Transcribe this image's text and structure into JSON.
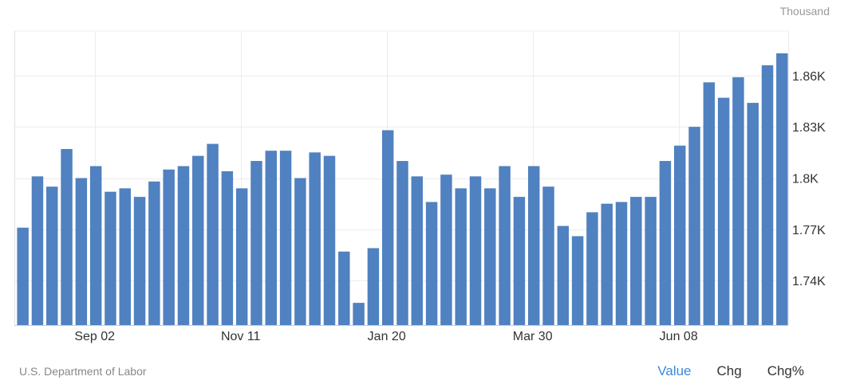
{
  "unit_label": "Thousand",
  "source": "U.S. Department of Labor",
  "tabs": [
    {
      "label": "Value",
      "active": true
    },
    {
      "label": "Chg",
      "active": false
    },
    {
      "label": "Chg%",
      "active": false
    }
  ],
  "colors": {
    "bar": "#5081c0",
    "grid": "#ececec",
    "active_tab": "#3b8ad9"
  },
  "chart_data": {
    "type": "bar",
    "title": "",
    "xlabel": "",
    "ylabel": "",
    "ylim": [
      1714,
      1886
    ],
    "y_ticks": [
      1740,
      1770,
      1800,
      1830,
      1860
    ],
    "y_tick_labels": [
      "1.74K",
      "1.77K",
      "1.8K",
      "1.83K",
      "1.86K"
    ],
    "x_tick_labels": [
      {
        "index": 5,
        "label": "Sep 02"
      },
      {
        "index": 15,
        "label": "Nov 11"
      },
      {
        "index": 25,
        "label": "Jan 20"
      },
      {
        "index": 35,
        "label": "Mar 30"
      },
      {
        "index": 45,
        "label": "Jun 08"
      }
    ],
    "values": [
      1771,
      1801,
      1795,
      1817,
      1800,
      1807,
      1792,
      1794,
      1789,
      1798,
      1805,
      1807,
      1813,
      1820,
      1804,
      1794,
      1810,
      1816,
      1816,
      1800,
      1815,
      1813,
      1757,
      1727,
      1759,
      1828,
      1810,
      1801,
      1786,
      1802,
      1794,
      1801,
      1794,
      1807,
      1789,
      1807,
      1795,
      1772,
      1766,
      1780,
      1785,
      1786,
      1789,
      1789,
      1810,
      1819,
      1830,
      1856,
      1847,
      1859,
      1844,
      1866,
      1873
    ]
  }
}
